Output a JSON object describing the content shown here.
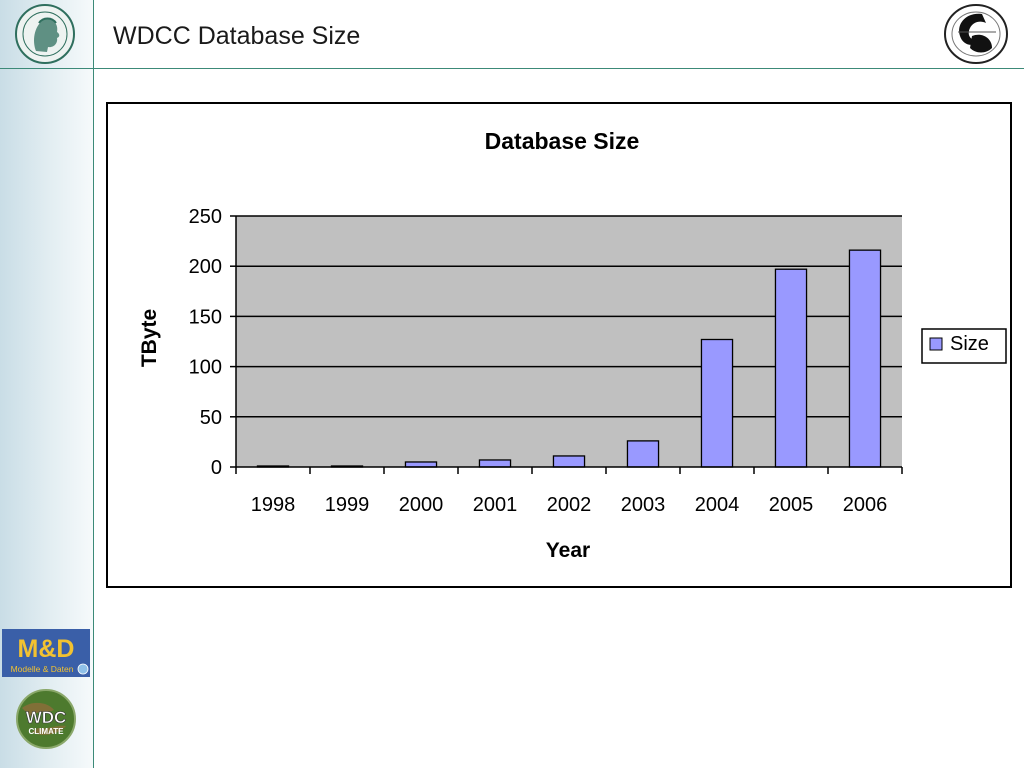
{
  "slide": {
    "title": "WDCC Database Size"
  },
  "logos": {
    "md_text": "M&D",
    "md_subtext": "Modelle & Daten",
    "wdc_text": "WDC",
    "wdc_subtext": "CLIMATE"
  },
  "colors": {
    "bar_fill": "#9999ff",
    "plot_bg": "#c0c0c0",
    "rule": "#3c8a78",
    "md_bg": "#3a5fa8",
    "md_text": "#f2c230"
  },
  "chart_data": {
    "type": "bar",
    "title": "Database Size",
    "xlabel": "Year",
    "ylabel": "TByte",
    "categories": [
      "1998",
      "1999",
      "2000",
      "2001",
      "2002",
      "2003",
      "2004",
      "2005",
      "2006"
    ],
    "series": [
      {
        "name": "Size",
        "values": [
          1,
          1,
          5,
          7,
          11,
          26,
          127,
          197,
          216
        ]
      }
    ],
    "ylim": [
      0,
      250
    ],
    "yticks": [
      0,
      50,
      100,
      150,
      200,
      250
    ],
    "grid": true,
    "legend": "right"
  }
}
